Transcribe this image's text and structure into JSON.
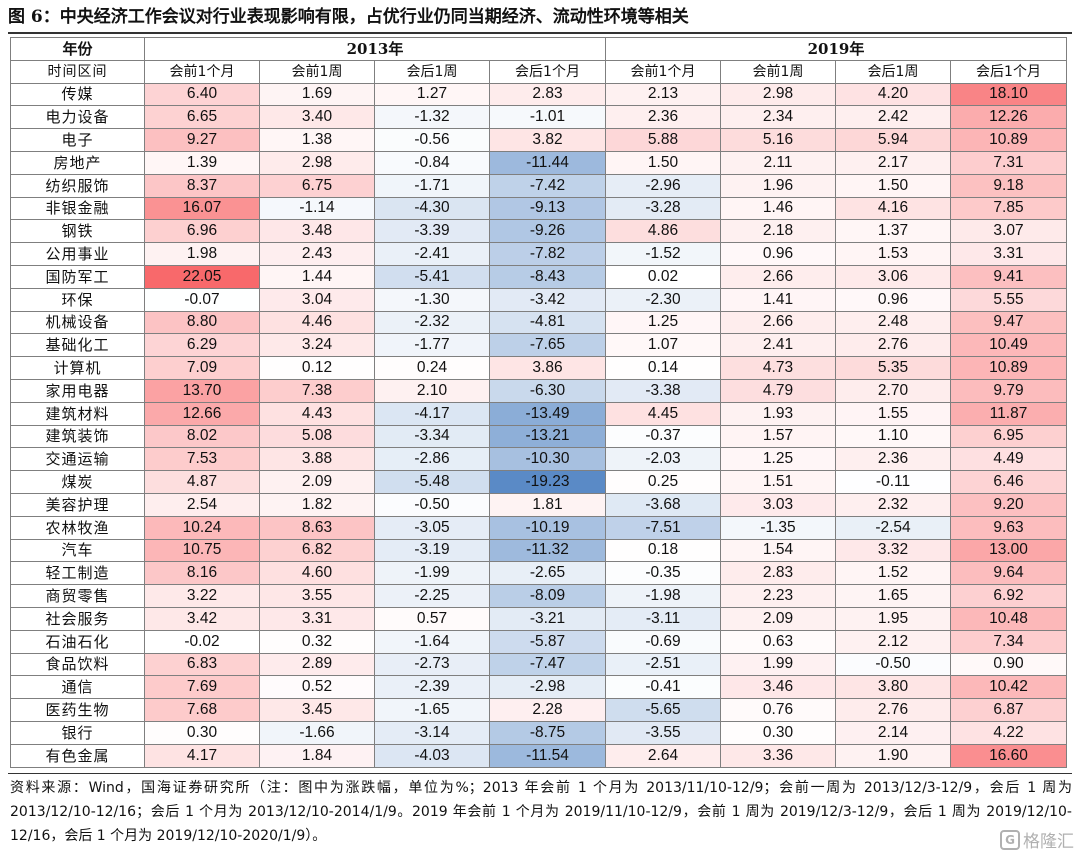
{
  "figure_title": "图 6：中央经济工作会议对行业表现影响有限，占优行业仍同当期经济、流动性环境等相关",
  "header": {
    "year_label": "年份",
    "years": [
      "2013年",
      "2019年"
    ],
    "period_label": "时间区间",
    "periods": [
      "会前1个月",
      "会前1周",
      "会后1周",
      "会后1个月",
      "会前1个月",
      "会前1周",
      "会后1周",
      "会后1个月"
    ]
  },
  "colors": {
    "positive": "#f8696b",
    "negative": "#5a8ac6",
    "neutral": "#ffffff",
    "border": "#7f7f7f"
  },
  "rows": [
    {
      "name": "传媒",
      "values": [
        "6.40",
        "1.69",
        "1.27",
        "2.83",
        "2.13",
        "2.98",
        "4.20",
        "18.10"
      ]
    },
    {
      "name": "电力设备",
      "values": [
        "6.65",
        "3.40",
        "-1.32",
        "-1.01",
        "2.36",
        "2.34",
        "2.42",
        "12.26"
      ]
    },
    {
      "name": "电子",
      "values": [
        "9.27",
        "1.38",
        "-0.56",
        "3.82",
        "5.88",
        "5.16",
        "5.94",
        "10.89"
      ]
    },
    {
      "name": "房地产",
      "values": [
        "1.39",
        "2.98",
        "-0.84",
        "-11.44",
        "1.50",
        "2.11",
        "2.17",
        "7.31"
      ]
    },
    {
      "name": "纺织服饰",
      "values": [
        "8.37",
        "6.75",
        "-1.71",
        "-7.42",
        "-2.96",
        "1.96",
        "1.50",
        "9.18"
      ]
    },
    {
      "name": "非银金融",
      "values": [
        "16.07",
        "-1.14",
        "-4.30",
        "-9.13",
        "-3.28",
        "1.46",
        "4.16",
        "7.85"
      ]
    },
    {
      "name": "钢铁",
      "values": [
        "6.96",
        "3.48",
        "-3.39",
        "-9.26",
        "4.86",
        "2.18",
        "1.37",
        "3.07"
      ]
    },
    {
      "name": "公用事业",
      "values": [
        "1.98",
        "2.43",
        "-2.41",
        "-7.82",
        "-1.52",
        "0.96",
        "1.53",
        "3.31"
      ]
    },
    {
      "name": "国防军工",
      "values": [
        "22.05",
        "1.44",
        "-5.41",
        "-8.43",
        "0.02",
        "2.66",
        "3.06",
        "9.41"
      ]
    },
    {
      "name": "环保",
      "values": [
        "-0.07",
        "3.04",
        "-1.30",
        "-3.42",
        "-2.30",
        "1.41",
        "0.96",
        "5.55"
      ]
    },
    {
      "name": "机械设备",
      "values": [
        "8.80",
        "4.46",
        "-2.32",
        "-4.81",
        "1.25",
        "2.66",
        "2.48",
        "9.47"
      ]
    },
    {
      "name": "基础化工",
      "values": [
        "6.29",
        "3.24",
        "-1.77",
        "-7.65",
        "1.07",
        "2.41",
        "2.76",
        "10.49"
      ]
    },
    {
      "name": "计算机",
      "values": [
        "7.09",
        "0.12",
        "0.24",
        "3.86",
        "0.14",
        "4.73",
        "5.35",
        "10.89"
      ]
    },
    {
      "name": "家用电器",
      "values": [
        "13.70",
        "7.38",
        "2.10",
        "-6.30",
        "-3.38",
        "4.79",
        "2.70",
        "9.79"
      ]
    },
    {
      "name": "建筑材料",
      "values": [
        "12.66",
        "4.43",
        "-4.17",
        "-13.49",
        "4.45",
        "1.93",
        "1.55",
        "11.87"
      ]
    },
    {
      "name": "建筑装饰",
      "values": [
        "8.02",
        "5.08",
        "-3.34",
        "-13.21",
        "-0.37",
        "1.57",
        "1.10",
        "6.95"
      ]
    },
    {
      "name": "交通运输",
      "values": [
        "7.53",
        "3.88",
        "-2.86",
        "-10.30",
        "-2.03",
        "1.25",
        "2.36",
        "4.49"
      ]
    },
    {
      "name": "煤炭",
      "values": [
        "4.87",
        "2.09",
        "-5.48",
        "-19.23",
        "0.25",
        "1.51",
        "-0.11",
        "6.46"
      ]
    },
    {
      "name": "美容护理",
      "values": [
        "2.54",
        "1.82",
        "-0.50",
        "1.81",
        "-3.68",
        "3.03",
        "2.32",
        "9.20"
      ]
    },
    {
      "name": "农林牧渔",
      "values": [
        "10.24",
        "8.63",
        "-3.05",
        "-10.19",
        "-7.51",
        "-1.35",
        "-2.54",
        "9.63"
      ]
    },
    {
      "name": "汽车",
      "values": [
        "10.75",
        "6.82",
        "-3.19",
        "-11.32",
        "0.18",
        "1.54",
        "3.32",
        "13.00"
      ]
    },
    {
      "name": "轻工制造",
      "values": [
        "8.16",
        "4.60",
        "-1.99",
        "-2.65",
        "-0.35",
        "2.83",
        "1.52",
        "9.64"
      ]
    },
    {
      "name": "商贸零售",
      "values": [
        "3.22",
        "3.55",
        "-2.25",
        "-8.09",
        "-1.98",
        "2.23",
        "1.65",
        "6.92"
      ]
    },
    {
      "name": "社会服务",
      "values": [
        "3.42",
        "3.31",
        "0.57",
        "-3.21",
        "-3.11",
        "2.09",
        "1.95",
        "10.48"
      ]
    },
    {
      "name": "石油石化",
      "values": [
        "-0.02",
        "0.32",
        "-1.64",
        "-5.87",
        "-0.69",
        "0.63",
        "2.12",
        "7.34"
      ]
    },
    {
      "name": "食品饮料",
      "values": [
        "6.83",
        "2.89",
        "-2.73",
        "-7.47",
        "-2.51",
        "1.99",
        "-0.50",
        "0.90"
      ]
    },
    {
      "name": "通信",
      "values": [
        "7.69",
        "0.52",
        "-2.39",
        "-2.98",
        "-0.41",
        "3.46",
        "3.80",
        "10.42"
      ]
    },
    {
      "name": "医药生物",
      "values": [
        "7.68",
        "3.45",
        "-1.65",
        "2.28",
        "-5.65",
        "0.76",
        "2.76",
        "6.87"
      ]
    },
    {
      "name": "银行",
      "values": [
        "0.30",
        "-1.66",
        "-3.14",
        "-8.75",
        "-3.55",
        "0.30",
        "2.14",
        "4.22"
      ]
    },
    {
      "name": "有色金属",
      "values": [
        "4.17",
        "1.84",
        "-4.03",
        "-11.54",
        "2.64",
        "3.36",
        "1.90",
        "16.60"
      ]
    }
  ],
  "source_note": "资料来源：Wind，国海证券研究所（注：图中为涨跌幅，单位为%；2013 年会前 1 个月为 2013/11/10-12/9；会前一周为 2013/12/3-12/9，会后 1 周为 2013/12/10-12/16；会后 1 个月为 2013/12/10-2014/1/9。2019 年会前 1 个月为 2019/11/10-12/9，会前 1 周为 2019/12/3-12/9，会后 1 周为 2019/12/10-12/16，会后 1 个月为 2019/12/10-2020/1/9）。",
  "watermark": {
    "icon": "gelonghui-logo-icon",
    "logo_letter": "G",
    "text": "格隆汇"
  }
}
